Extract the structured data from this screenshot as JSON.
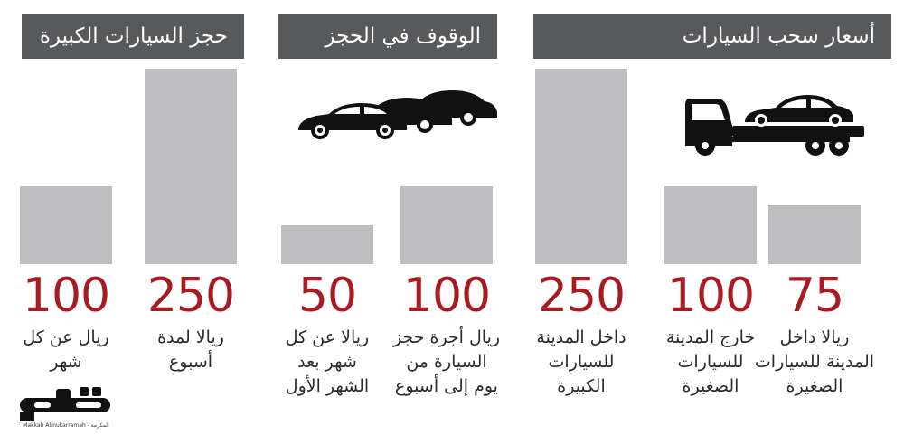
{
  "sections": [
    {
      "title": "أسعار سحب السيارات"
    },
    {
      "title": "الوقوف في الحجز"
    },
    {
      "title": "حجز السيارات الكبيرة"
    }
  ],
  "chart_data": {
    "type": "bar",
    "unit": "ريال",
    "bars": [
      {
        "group": "أسعار سحب السيارات",
        "value": 75,
        "value_label": "75",
        "lines": [
          "ريالا داخل",
          "المدينة للسيارات",
          "الصغيرة"
        ]
      },
      {
        "group": "أسعار سحب السيارات",
        "value": 100,
        "value_label": "100",
        "lines": [
          "خارج المدينة",
          "للسيارات",
          "الصغيرة"
        ]
      },
      {
        "group": "أسعار سحب السيارات",
        "value": 250,
        "value_label": "250",
        "lines": [
          "داخل المدينة",
          "للسيارات",
          "الكبيرة"
        ]
      },
      {
        "group": "الوقوف في الحجز",
        "value": 100,
        "value_label": "100",
        "lines": [
          "ريال أجرة حجز",
          "السيارة من",
          "يوم إلى أسبوع"
        ]
      },
      {
        "group": "الوقوف في الحجز",
        "value": 50,
        "value_label": "50",
        "lines": [
          "ريالا عن كل",
          "شهر بعد",
          "الشهر الأول"
        ]
      },
      {
        "group": "حجز السيارات الكبيرة",
        "value": 250,
        "value_label": "250",
        "lines": [
          "ريالا لمدة",
          "أسبوع"
        ]
      },
      {
        "group": "حجز السيارات الكبيرة",
        "value": 100,
        "value_label": "100",
        "lines": [
          "ريال عن كل",
          "شهر"
        ]
      }
    ],
    "ylim": [
      0,
      250
    ],
    "grid": false,
    "legend": "none"
  },
  "colors": {
    "header_bg": "#58595b",
    "bar": "#bdbdbf",
    "value_text": "#a61c22",
    "desc_text": "#2b2b2b",
    "icon": "#111111"
  },
  "icons": {
    "section_1": "tow-truck-icon",
    "section_2": "parked-cars-icon"
  },
  "logo": {
    "name": "مكة",
    "tagline": "Makkah Almukarramah - المكرمة"
  }
}
